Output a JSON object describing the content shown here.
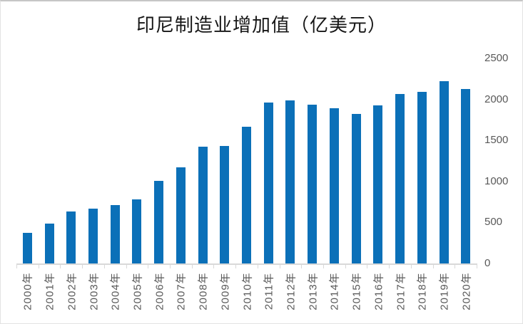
{
  "colors": {
    "bar": "#0b70b8",
    "axis_line": "#d9d9d9",
    "tick_label": "#595959",
    "title": "#161616",
    "frame_border": "#c6c6c6"
  },
  "chart_data": {
    "type": "bar",
    "title": "印尼制造业增加值（亿美元）",
    "xlabel": "",
    "ylabel": "",
    "categories": [
      "2000年",
      "2001年",
      "2002年",
      "2003年",
      "2004年",
      "2005年",
      "2006年",
      "2007年",
      "2008年",
      "2009年",
      "2010年",
      "2011年",
      "2012年",
      "2013年",
      "2014年",
      "2015年",
      "2016年",
      "2017年",
      "2018年",
      "2019年",
      "2020年"
    ],
    "values": [
      375,
      490,
      630,
      665,
      715,
      785,
      1010,
      1175,
      1425,
      1435,
      1670,
      1965,
      1985,
      1935,
      1890,
      1820,
      1925,
      2065,
      2090,
      2225,
      2125
    ],
    "ylim": [
      0,
      2500
    ],
    "yticks": [
      0,
      500,
      1000,
      1500,
      2000,
      2500
    ],
    "y_axis_side": "right",
    "x_tick_rotation": -90,
    "grid": false,
    "legend": false
  }
}
